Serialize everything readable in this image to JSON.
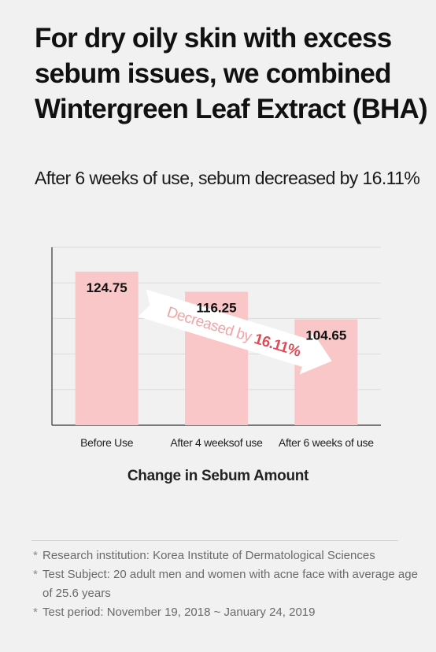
{
  "headline": {
    "lines": [
      "For dry oily skin with excess",
      "sebum issues, we combined",
      "Wintergreen Leaf Extract (BHA)"
    ]
  },
  "subheadline": "After 6 weeks of use, sebum decreased by 16.11%",
  "chart_data": {
    "type": "bar",
    "title": "Change in Sebum Amount",
    "categories": [
      "Before Use",
      "After 4 weeksof use",
      "After 6 weeks of use"
    ],
    "values": [
      124.75,
      116.25,
      104.65
    ],
    "value_labels": [
      "124.75",
      "116.25",
      "104.65"
    ],
    "ylim": [
      60,
      135
    ],
    "grid": true,
    "bar_color": "#f9c7c8",
    "annotation": {
      "prefix": "Decreased by ",
      "value": "16.11%",
      "text_color": "#f2a3a6",
      "value_color": "#e24b56",
      "arrow_color": "#ffffff"
    }
  },
  "notes": [
    "Research institution: Korea Institute of Dermatological Sciences",
    "Test Subject: 20 adult men and women with acne face with average age of 25.6 years",
    "Test period: November 19, 2018 ~ January 24, 2019"
  ],
  "note_bullet": "*"
}
